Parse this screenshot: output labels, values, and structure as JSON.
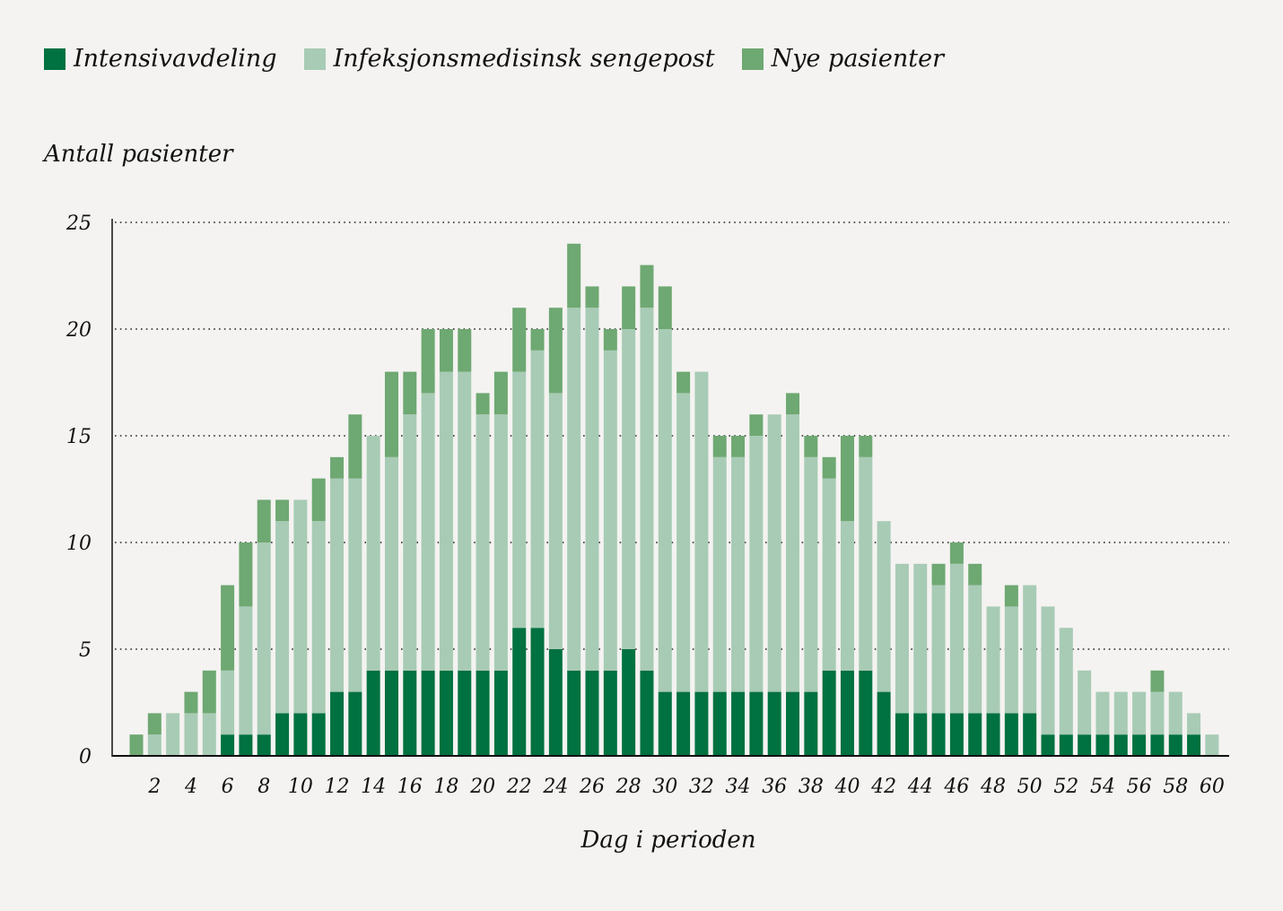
{
  "chart_data": {
    "type": "bar",
    "stacked": true,
    "title": "",
    "ylabel": "Antall pasienter",
    "xlabel": "Dag i perioden",
    "ylim": [
      0,
      25
    ],
    "yticks": [
      0,
      5,
      10,
      15,
      20,
      25
    ],
    "grid": "horizontal dotted",
    "legend_position": "top-left",
    "x": [
      1,
      2,
      3,
      4,
      5,
      6,
      7,
      8,
      9,
      10,
      11,
      12,
      13,
      14,
      15,
      16,
      17,
      18,
      19,
      20,
      21,
      22,
      23,
      24,
      25,
      26,
      27,
      28,
      29,
      30,
      31,
      32,
      33,
      34,
      35,
      36,
      37,
      38,
      39,
      40,
      41,
      42,
      43,
      44,
      45,
      46,
      47,
      48,
      49,
      50,
      51,
      52,
      53,
      54,
      55,
      56,
      57,
      58,
      59,
      60
    ],
    "xtick_labels": [
      "2",
      "4",
      "6",
      "8",
      "10",
      "12",
      "14",
      "16",
      "18",
      "20",
      "22",
      "24",
      "26",
      "28",
      "30",
      "32",
      "34",
      "36",
      "38",
      "40",
      "42",
      "44",
      "46",
      "48",
      "50",
      "52",
      "54",
      "56",
      "58",
      "60"
    ],
    "series": [
      {
        "name": "Intensivavdeling",
        "color": "#007140",
        "values": [
          0,
          0,
          0,
          0,
          0,
          1,
          1,
          1,
          2,
          2,
          2,
          3,
          3,
          4,
          4,
          4,
          4,
          4,
          4,
          4,
          4,
          6,
          6,
          5,
          4,
          4,
          4,
          5,
          4,
          3,
          3,
          3,
          3,
          3,
          3,
          3,
          3,
          3,
          4,
          4,
          4,
          3,
          2,
          2,
          2,
          2,
          2,
          2,
          2,
          2,
          1,
          1,
          1,
          1,
          1,
          1,
          1,
          1,
          1,
          0
        ]
      },
      {
        "name": "Infeksjonsmedisinsk sengepost",
        "color": "#a8cbb5",
        "values": [
          0,
          1,
          2,
          2,
          2,
          3,
          6,
          9,
          9,
          10,
          9,
          10,
          10,
          11,
          10,
          12,
          13,
          14,
          14,
          12,
          12,
          12,
          13,
          12,
          17,
          17,
          15,
          15,
          17,
          17,
          14,
          15,
          11,
          11,
          12,
          13,
          13,
          11,
          9,
          7,
          10,
          8,
          7,
          7,
          6,
          7,
          6,
          5,
          5,
          6,
          6,
          5,
          3,
          2,
          2,
          2,
          2,
          2,
          1,
          1
        ]
      },
      {
        "name": "Nye pasienter",
        "color": "#6ea872",
        "values": [
          1,
          1,
          0,
          1,
          2,
          4,
          3,
          2,
          1,
          0,
          2,
          1,
          3,
          0,
          4,
          2,
          3,
          2,
          2,
          1,
          2,
          3,
          1,
          4,
          3,
          1,
          1,
          2,
          2,
          2,
          1,
          0,
          1,
          1,
          1,
          0,
          1,
          1,
          1,
          4,
          1,
          0,
          0,
          0,
          1,
          1,
          1,
          0,
          1,
          0,
          0,
          0,
          0,
          0,
          0,
          0,
          1,
          0,
          0,
          0
        ]
      }
    ]
  }
}
